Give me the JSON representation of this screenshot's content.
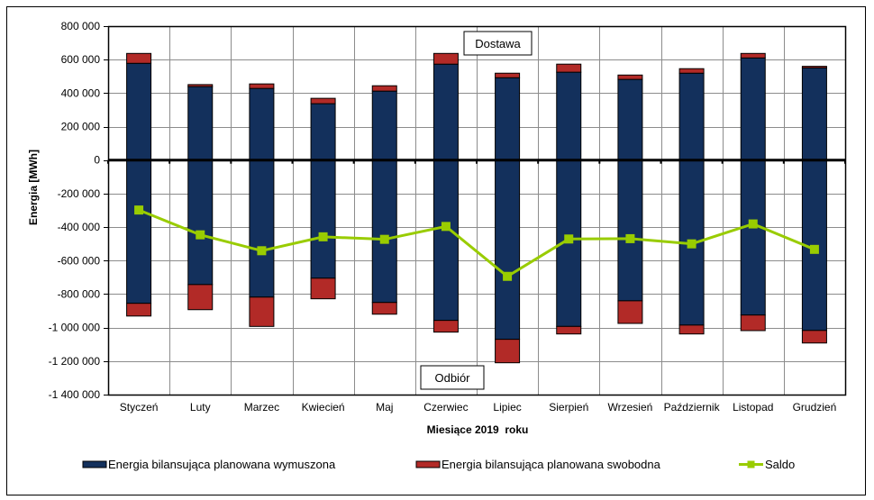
{
  "chart_data": {
    "type": "bar",
    "stacked": true,
    "title": "",
    "xlabel": "Miesiące 2019  roku",
    "ylabel": "Energia  [MWh]",
    "ylim": [
      -1400000,
      800000
    ],
    "ytick_step": 200000,
    "yticks": [
      "800 000",
      "600 000",
      "400 000",
      "200 000",
      "0",
      "-200 000",
      "-400 000",
      "-600 000",
      "-800 000",
      "-1 000 000",
      "-1 200 000",
      "-1 400 000"
    ],
    "ytick_values": [
      800000,
      600000,
      400000,
      200000,
      0,
      -200000,
      -400000,
      -600000,
      -800000,
      -1000000,
      -1200000,
      -1400000
    ],
    "grid": true,
    "legend_position": "bottom",
    "categories": [
      "Styczeń",
      "Luty",
      "Marzec",
      "Kwiecień",
      "Maj",
      "Czerwiec",
      "Lipiec",
      "Sierpień",
      "Wrzesień",
      "Październik",
      "Listopad",
      "Grudzień"
    ],
    "series": [
      {
        "name": "Energia bilansująca planowana wymuszona",
        "kind": "bar",
        "color": "#13305C",
        "supply": [
          578000,
          439000,
          428000,
          337000,
          412000,
          573000,
          492000,
          525000,
          482000,
          519000,
          610000,
          551000
        ],
        "offtake": [
          -855000,
          -743000,
          -818000,
          -705000,
          -850000,
          -957000,
          -1070000,
          -993000,
          -840000,
          -985000,
          -925000,
          -1017000
        ]
      },
      {
        "name": "Energia bilansująca planowana swobodna",
        "kind": "bar",
        "color": "#B22A27",
        "supply": [
          59000,
          12000,
          27000,
          32000,
          32000,
          64000,
          27000,
          48000,
          26000,
          27000,
          27000,
          9000
        ],
        "offtake": [
          -76000,
          -150000,
          -175000,
          -123000,
          -70000,
          -70000,
          -140000,
          -45000,
          -135000,
          -53000,
          -93000,
          -75000
        ]
      },
      {
        "name": "Saldo",
        "kind": "line",
        "color": "#99CC00",
        "values": [
          -298000,
          -446000,
          -541000,
          -458000,
          -473000,
          -396000,
          -694000,
          -471000,
          -469000,
          -500000,
          -381000,
          -533000
        ]
      }
    ],
    "annotations": [
      "Dostawa",
      "Odbiór"
    ]
  }
}
